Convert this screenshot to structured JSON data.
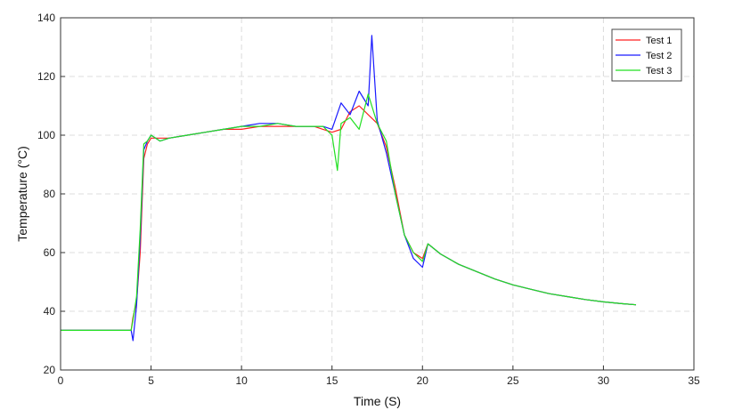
{
  "chart_data": {
    "type": "line",
    "xlabel": "Time (S)",
    "ylabel": "Temperature (°C)",
    "xlim": [
      0,
      35
    ],
    "ylim": [
      20,
      140
    ],
    "xticks": [
      0,
      5,
      10,
      15,
      20,
      25,
      30,
      35
    ],
    "yticks": [
      20,
      40,
      60,
      80,
      100,
      120,
      140
    ],
    "grid": true,
    "legend_position": "top-right",
    "colors": {
      "Test 1": "#ff2020",
      "Test 2": "#1a1aff",
      "Test 3": "#22e022"
    },
    "series": [
      {
        "name": "Test 1",
        "color": "#ff2020",
        "x": [
          0,
          3.9,
          4.0,
          4.2,
          4.4,
          4.6,
          4.8,
          5.0,
          5.5,
          6,
          7,
          8,
          9,
          10,
          11,
          12,
          13,
          14,
          14.5,
          15,
          15.5,
          16,
          16.5,
          17,
          17.5,
          18,
          18.5,
          19,
          19.5,
          20,
          20.3,
          21,
          22,
          23,
          24,
          25,
          26,
          27,
          28,
          29,
          30,
          31,
          31.8
        ],
        "y": [
          33.5,
          33.5,
          38,
          43,
          60,
          92,
          97,
          99,
          99,
          99,
          100,
          101,
          102,
          102,
          103,
          103,
          103,
          103,
          102,
          101,
          102,
          108,
          110,
          107,
          104,
          96,
          82,
          66,
          60,
          58,
          63,
          59.5,
          56,
          53.5,
          51,
          49,
          47.5,
          46,
          45,
          44,
          43.2,
          42.6,
          42.2
        ]
      },
      {
        "name": "Test 2",
        "color": "#1a1aff",
        "x": [
          0,
          3.9,
          4.0,
          4.2,
          4.4,
          4.6,
          4.8,
          5.0,
          5.5,
          6,
          7,
          8,
          9,
          10,
          11,
          12,
          13,
          14,
          14.5,
          15,
          15.5,
          16,
          16.5,
          17,
          17.2,
          17.5,
          18,
          18.5,
          19,
          19.5,
          20,
          20.3,
          21,
          22,
          23,
          24,
          25,
          26,
          27,
          28,
          29,
          30,
          31,
          31.8
        ],
        "y": [
          33.5,
          33.5,
          30,
          42,
          65,
          95,
          98,
          100,
          98,
          99,
          100,
          101,
          102,
          103,
          104,
          104,
          103,
          103,
          103,
          102,
          111,
          107,
          115,
          110,
          134,
          105,
          94,
          80,
          66,
          58,
          55,
          63,
          59.5,
          56,
          53.5,
          51,
          49,
          47.5,
          46,
          45,
          44,
          43.2,
          42.6,
          42.2
        ]
      },
      {
        "name": "Test 3",
        "color": "#22e022",
        "x": [
          0,
          3.9,
          4.0,
          4.2,
          4.4,
          4.6,
          4.8,
          5.0,
          5.5,
          6,
          7,
          8,
          9,
          10,
          11,
          12,
          13,
          14,
          14.5,
          15,
          15.3,
          15.5,
          16,
          16.5,
          17,
          17.5,
          18,
          18.5,
          19,
          19.5,
          20,
          20.3,
          21,
          22,
          23,
          24,
          25,
          26,
          27,
          28,
          29,
          30,
          31,
          31.8
        ],
        "y": [
          33.5,
          33.5,
          37,
          45,
          68,
          97,
          98,
          100,
          98,
          99,
          100,
          101,
          102,
          103,
          103,
          104,
          103,
          103,
          103,
          100,
          88,
          104,
          106,
          102,
          114,
          104,
          98,
          80,
          66,
          60,
          57,
          63,
          59.5,
          56,
          53.5,
          51,
          49,
          47.5,
          46,
          45,
          44,
          43.2,
          42.6,
          42.2
        ]
      }
    ]
  }
}
